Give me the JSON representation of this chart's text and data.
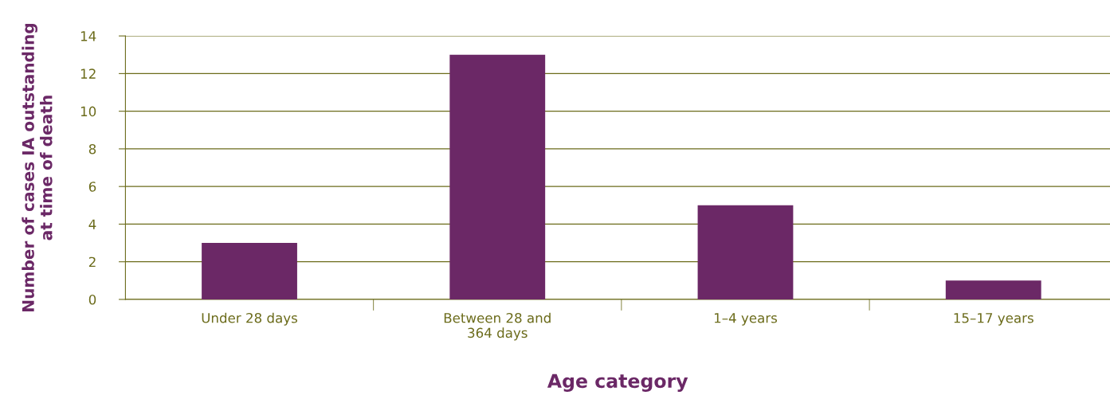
{
  "chart_data": {
    "type": "bar",
    "xlabel": "Age category",
    "ylabel": "Number of cases IA outstanding at time of death",
    "categories": [
      "Under 28 days",
      "Between 28 and 364 days",
      "1–4 years",
      "15–17 years"
    ],
    "values": [
      3,
      13,
      5,
      1
    ],
    "color": "#6b2866",
    "ylim": [
      0,
      14
    ],
    "yticks": [
      0,
      2,
      4,
      6,
      8,
      10,
      12,
      14
    ],
    "grid": "y"
  }
}
